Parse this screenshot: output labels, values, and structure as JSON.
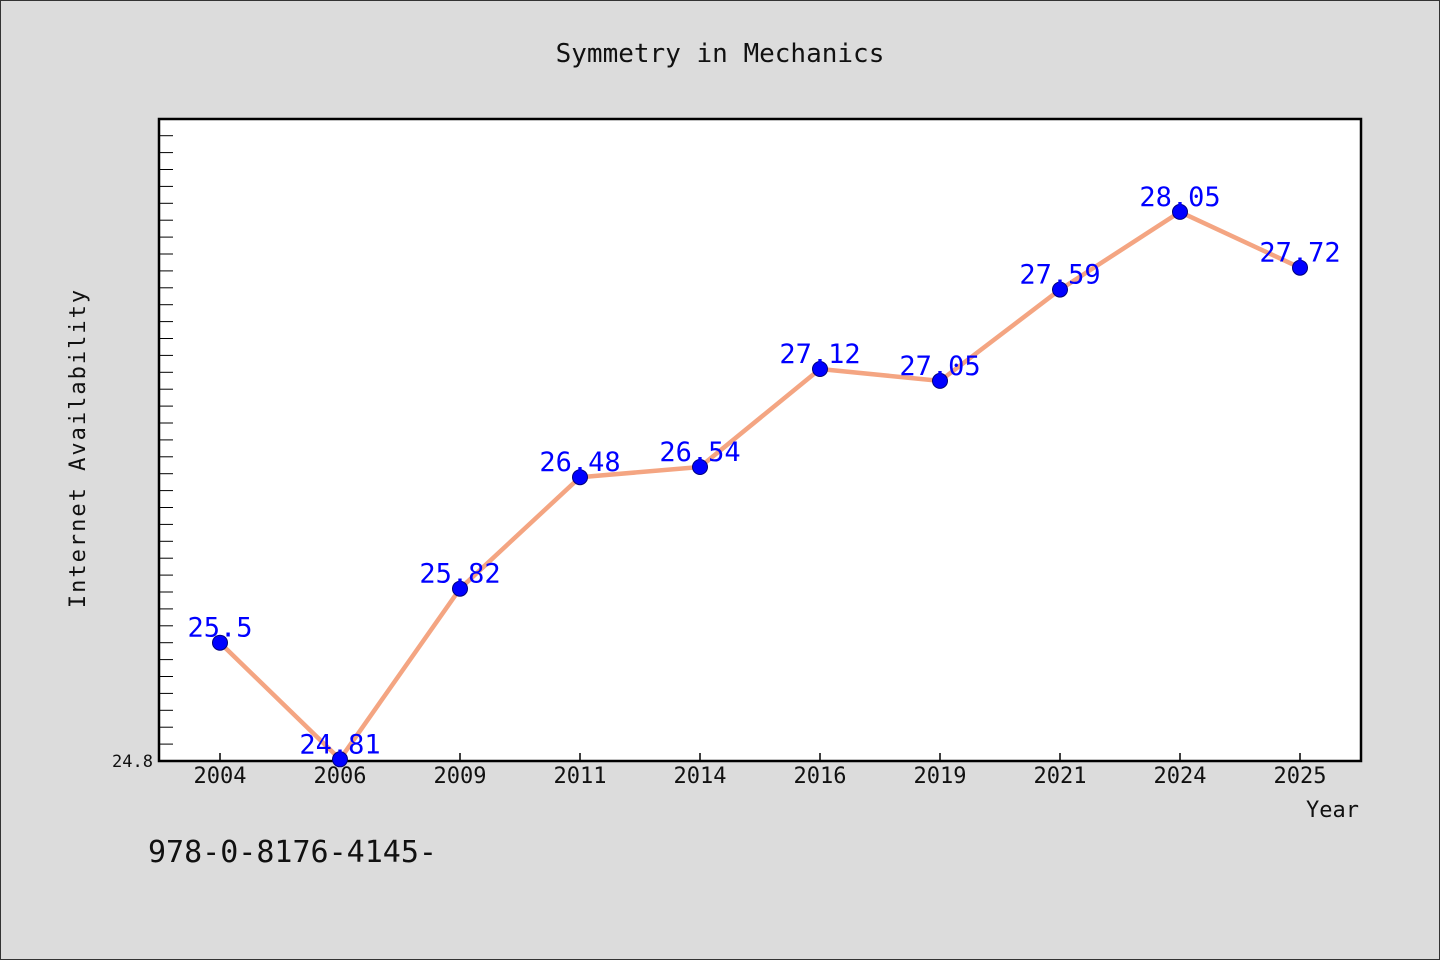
{
  "chart_data": {
    "type": "line",
    "title": "Symmetry in Mechanics",
    "xlabel": "Year",
    "ylabel": "Internet Availability",
    "categories": [
      "2004",
      "2006",
      "2009",
      "2011",
      "2014",
      "2016",
      "2019",
      "2021",
      "2024",
      "2025"
    ],
    "series": [
      {
        "name": "",
        "values": [
          25.5,
          24.81,
          25.82,
          26.48,
          26.54,
          27.12,
          27.05,
          27.59,
          28.05,
          27.72
        ],
        "data_labels": [
          "25.5",
          "24.81",
          "25.82",
          "26.48",
          "26.54",
          "27.12",
          "27.05",
          "27.59",
          "28.05",
          "27.72"
        ]
      }
    ],
    "ylim": [
      24.8,
      28.6
    ],
    "yticks": [
      {
        "value": 24.8,
        "label": "24.8"
      }
    ],
    "grid": false,
    "line_color": "#f4a582",
    "marker_color": "#0000ff",
    "data_label_color": "#0000ff"
  },
  "footer": {
    "text": "978-0-8176-4145-"
  }
}
